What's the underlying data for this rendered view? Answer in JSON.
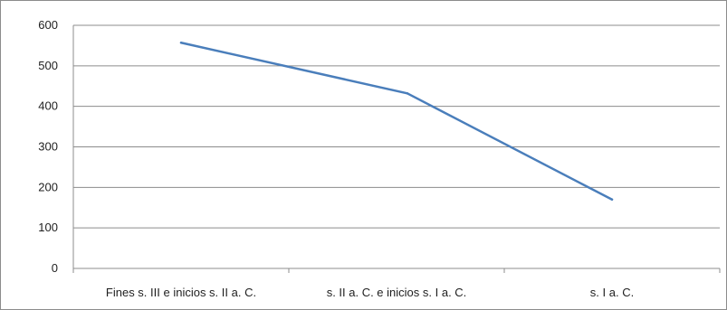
{
  "chart_data": {
    "type": "line",
    "categories": [
      "Fines s. III e inicios s. II a. C.",
      "s. II a. C. e inicios s. I a. C.",
      "s. I a. C."
    ],
    "x_positions": [
      0.5,
      1.55,
      2.5
    ],
    "values": [
      557,
      432,
      170
    ],
    "title": "",
    "xlabel": "",
    "ylabel": "",
    "ylim": [
      0,
      600
    ],
    "yticks": [
      0,
      100,
      200,
      300,
      400,
      500,
      600
    ],
    "grid": true,
    "legend": "none",
    "line_color": "#4a7ebb",
    "grid_color": "#8c8c8c"
  }
}
